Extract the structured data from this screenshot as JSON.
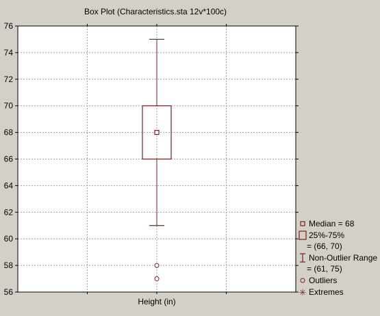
{
  "colors": {
    "background": "#d4d0c8",
    "plot_area": "#ffffff",
    "box": "#7a1f1f",
    "grid": "#a0a0a0"
  },
  "chart_data": {
    "type": "box",
    "title": "Box Plot (Characteristics.sta 12v*100c)",
    "xlabel": "",
    "ylabel": "",
    "categories": [
      "Height (in)"
    ],
    "ylim": [
      56,
      76
    ],
    "y_ticks": [
      56,
      58,
      60,
      62,
      64,
      66,
      68,
      70,
      72,
      74,
      76
    ],
    "grid": true,
    "legend_position": "right-bottom",
    "boxes": [
      {
        "category": "Height (in)",
        "median": 68,
        "q1": 66,
        "q3": 70,
        "whisker_low": 61,
        "whisker_high": 75,
        "outliers": [
          58,
          57
        ],
        "extremes": []
      }
    ],
    "legend": [
      {
        "symbol": "square-small",
        "label": "Median = 68"
      },
      {
        "symbol": "box",
        "label": "25%-75%",
        "sublabel": "= (66, 70)"
      },
      {
        "symbol": "whisker",
        "label": "Non-Outlier Range",
        "sublabel": "= (61, 75)"
      },
      {
        "symbol": "circle",
        "label": "Outliers"
      },
      {
        "symbol": "asterisk",
        "label": "Extremes"
      }
    ]
  }
}
